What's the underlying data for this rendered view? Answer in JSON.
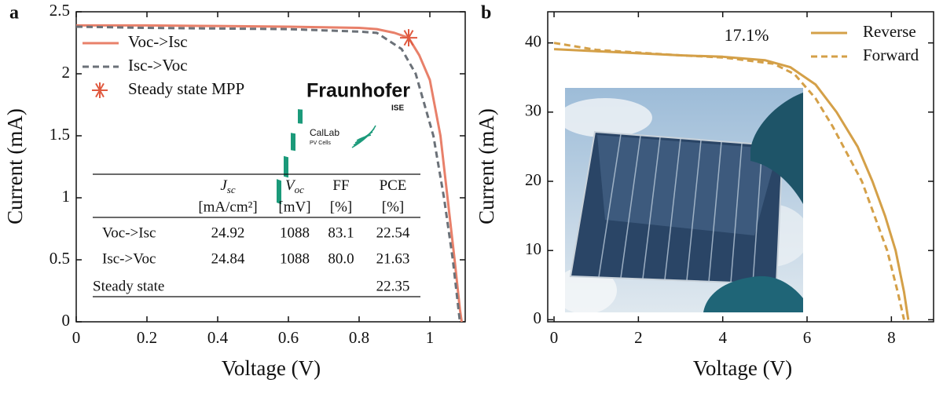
{
  "chart_data": [
    {
      "type": "line",
      "panel_label": "a",
      "xlabel": "Voltage (V)",
      "ylabel": "Current (mA)",
      "xlim": [
        0,
        1.1
      ],
      "ylim": [
        0,
        2.5
      ],
      "xticks": [
        0,
        0.2,
        0.4,
        0.6,
        0.8,
        1
      ],
      "yticks": [
        0,
        0.5,
        1,
        1.5,
        2,
        2.5
      ],
      "legend": "upper left",
      "series": [
        {
          "name": "Voc->Isc",
          "color": "#e8806a",
          "style": "solid",
          "x": [
            0,
            0.2,
            0.4,
            0.6,
            0.7,
            0.8,
            0.85,
            0.9,
            0.94,
            0.97,
            1.0,
            1.03,
            1.05,
            1.07,
            1.085,
            1.09
          ],
          "values": [
            2.39,
            2.39,
            2.385,
            2.38,
            2.375,
            2.37,
            2.36,
            2.33,
            2.29,
            2.15,
            1.95,
            1.5,
            1.0,
            0.5,
            0.1,
            0
          ]
        },
        {
          "name": "Isc->Voc",
          "color": "#6b7178",
          "style": "dashed",
          "x": [
            0,
            0.2,
            0.4,
            0.6,
            0.7,
            0.8,
            0.85,
            0.92,
            0.96,
            1.01,
            1.04,
            1.065,
            1.085
          ],
          "values": [
            2.38,
            2.37,
            2.365,
            2.36,
            2.35,
            2.34,
            2.33,
            2.2,
            2.0,
            1.5,
            1.0,
            0.5,
            0
          ]
        },
        {
          "name": "Steady state MPP",
          "color": "#e05a40",
          "style": "marker",
          "x": [
            0.94
          ],
          "values": [
            2.29
          ]
        }
      ],
      "logo_texts": {
        "fraunhofer": "Fraunhofer",
        "ise": "ISE",
        "callab": "CalLab",
        "pv_cells": "PV Cells"
      },
      "table": {
        "columns": [
          {
            "symbol": "J",
            "subscript": "sc",
            "unit": "[mA/cm²]"
          },
          {
            "symbol": "V",
            "subscript": "oc",
            "unit": "[mV]"
          },
          {
            "symbol": "FF",
            "unit": "[%]"
          },
          {
            "symbol": "PCE",
            "unit": "[%]"
          }
        ],
        "rows": [
          {
            "label": "Voc->Isc",
            "cells": [
              "24.92",
              "1088",
              "83.1",
              "22.54"
            ]
          },
          {
            "label": "Isc->Voc",
            "cells": [
              "24.84",
              "1088",
              "80.0",
              "21.63"
            ]
          },
          {
            "label": "Steady state",
            "cells": [
              null,
              null,
              null,
              "22.35"
            ]
          }
        ]
      }
    },
    {
      "type": "line",
      "panel_label": "b",
      "xlabel": "Voltage (V)",
      "ylabel": "Current (mA)",
      "xlim": [
        -0.15,
        9
      ],
      "ylim": [
        -0.3,
        44.5
      ],
      "xticks": [
        0,
        2,
        4,
        6,
        8
      ],
      "yticks": [
        0,
        10,
        20,
        30,
        40
      ],
      "legend": "upper right",
      "annotation": "17.1%",
      "series": [
        {
          "name": "Reverse",
          "color": "#d4a048",
          "style": "solid",
          "x": [
            0,
            1,
            2,
            3,
            4,
            5,
            5.6,
            6.2,
            6.7,
            7.2,
            7.55,
            7.85,
            8.1,
            8.3,
            8.4
          ],
          "values": [
            39.1,
            38.8,
            38.5,
            38.2,
            38.0,
            37.5,
            36.5,
            34,
            30,
            25,
            20,
            15,
            10,
            4,
            0
          ]
        },
        {
          "name": "Forward",
          "color": "#d4a048",
          "style": "dashed",
          "x": [
            0,
            1,
            2,
            3,
            4,
            5.2,
            5.7,
            6.2,
            6.6,
            7.3,
            7.6,
            7.9,
            8.15,
            8.3
          ],
          "values": [
            40,
            39,
            38.6,
            38.2,
            37.9,
            37,
            35.5,
            32,
            28,
            20,
            15,
            10,
            4,
            0
          ]
        }
      ]
    }
  ]
}
